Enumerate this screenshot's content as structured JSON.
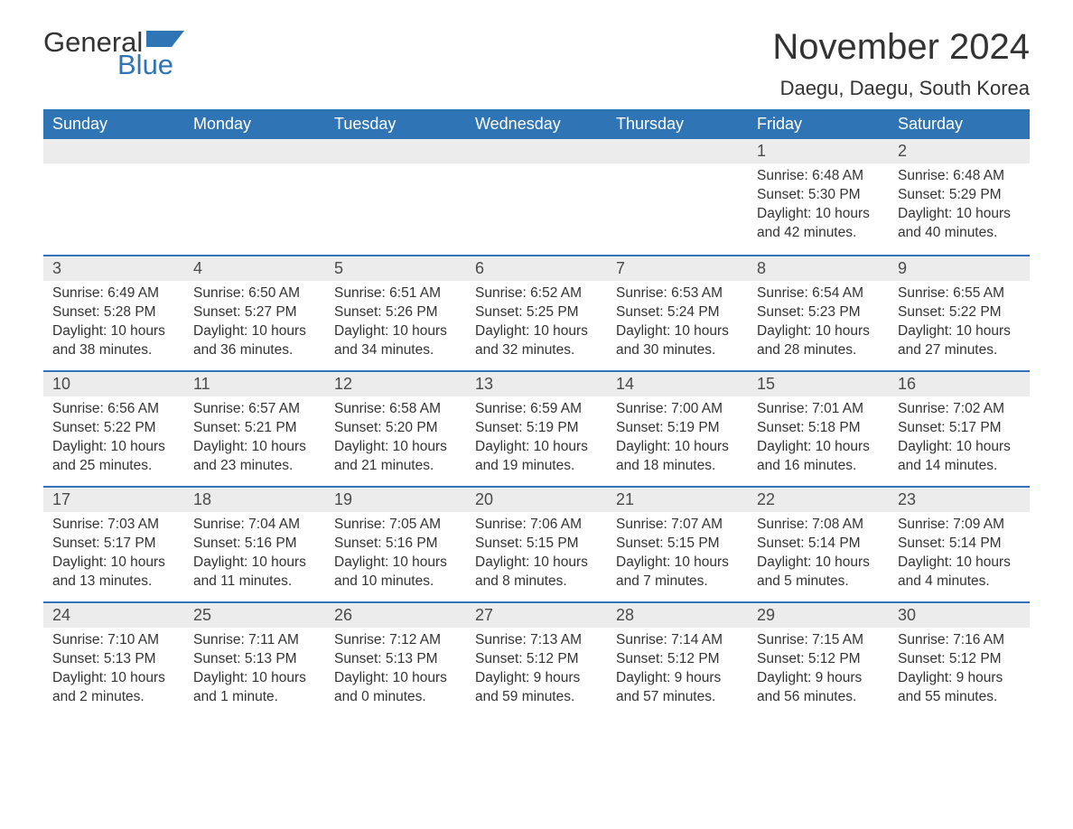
{
  "brand": {
    "part1": "General",
    "part2": "Blue",
    "text_color": "#333333",
    "accent_color": "#2f75b5"
  },
  "title": "November 2024",
  "location": "Daegu, Daegu, South Korea",
  "colors": {
    "header_bg": "#2f75b5",
    "header_text": "#ffffff",
    "daynum_bg": "#ececec",
    "border_top": "#2f75b5",
    "body_text": "#333333",
    "page_bg": "#ffffff"
  },
  "fonts": {
    "title_size_pt": 30,
    "location_size_pt": 17,
    "header_size_pt": 14,
    "daynum_size_pt": 14,
    "body_size_pt": 12
  },
  "day_headers": [
    "Sunday",
    "Monday",
    "Tuesday",
    "Wednesday",
    "Thursday",
    "Friday",
    "Saturday"
  ],
  "weeks": [
    [
      null,
      null,
      null,
      null,
      null,
      {
        "n": "1",
        "sunrise": "Sunrise: 6:48 AM",
        "sunset": "Sunset: 5:30 PM",
        "daylight": "Daylight: 10 hours and 42 minutes."
      },
      {
        "n": "2",
        "sunrise": "Sunrise: 6:48 AM",
        "sunset": "Sunset: 5:29 PM",
        "daylight": "Daylight: 10 hours and 40 minutes."
      }
    ],
    [
      {
        "n": "3",
        "sunrise": "Sunrise: 6:49 AM",
        "sunset": "Sunset: 5:28 PM",
        "daylight": "Daylight: 10 hours and 38 minutes."
      },
      {
        "n": "4",
        "sunrise": "Sunrise: 6:50 AM",
        "sunset": "Sunset: 5:27 PM",
        "daylight": "Daylight: 10 hours and 36 minutes."
      },
      {
        "n": "5",
        "sunrise": "Sunrise: 6:51 AM",
        "sunset": "Sunset: 5:26 PM",
        "daylight": "Daylight: 10 hours and 34 minutes."
      },
      {
        "n": "6",
        "sunrise": "Sunrise: 6:52 AM",
        "sunset": "Sunset: 5:25 PM",
        "daylight": "Daylight: 10 hours and 32 minutes."
      },
      {
        "n": "7",
        "sunrise": "Sunrise: 6:53 AM",
        "sunset": "Sunset: 5:24 PM",
        "daylight": "Daylight: 10 hours and 30 minutes."
      },
      {
        "n": "8",
        "sunrise": "Sunrise: 6:54 AM",
        "sunset": "Sunset: 5:23 PM",
        "daylight": "Daylight: 10 hours and 28 minutes."
      },
      {
        "n": "9",
        "sunrise": "Sunrise: 6:55 AM",
        "sunset": "Sunset: 5:22 PM",
        "daylight": "Daylight: 10 hours and 27 minutes."
      }
    ],
    [
      {
        "n": "10",
        "sunrise": "Sunrise: 6:56 AM",
        "sunset": "Sunset: 5:22 PM",
        "daylight": "Daylight: 10 hours and 25 minutes."
      },
      {
        "n": "11",
        "sunrise": "Sunrise: 6:57 AM",
        "sunset": "Sunset: 5:21 PM",
        "daylight": "Daylight: 10 hours and 23 minutes."
      },
      {
        "n": "12",
        "sunrise": "Sunrise: 6:58 AM",
        "sunset": "Sunset: 5:20 PM",
        "daylight": "Daylight: 10 hours and 21 minutes."
      },
      {
        "n": "13",
        "sunrise": "Sunrise: 6:59 AM",
        "sunset": "Sunset: 5:19 PM",
        "daylight": "Daylight: 10 hours and 19 minutes."
      },
      {
        "n": "14",
        "sunrise": "Sunrise: 7:00 AM",
        "sunset": "Sunset: 5:19 PM",
        "daylight": "Daylight: 10 hours and 18 minutes."
      },
      {
        "n": "15",
        "sunrise": "Sunrise: 7:01 AM",
        "sunset": "Sunset: 5:18 PM",
        "daylight": "Daylight: 10 hours and 16 minutes."
      },
      {
        "n": "16",
        "sunrise": "Sunrise: 7:02 AM",
        "sunset": "Sunset: 5:17 PM",
        "daylight": "Daylight: 10 hours and 14 minutes."
      }
    ],
    [
      {
        "n": "17",
        "sunrise": "Sunrise: 7:03 AM",
        "sunset": "Sunset: 5:17 PM",
        "daylight": "Daylight: 10 hours and 13 minutes."
      },
      {
        "n": "18",
        "sunrise": "Sunrise: 7:04 AM",
        "sunset": "Sunset: 5:16 PM",
        "daylight": "Daylight: 10 hours and 11 minutes."
      },
      {
        "n": "19",
        "sunrise": "Sunrise: 7:05 AM",
        "sunset": "Sunset: 5:16 PM",
        "daylight": "Daylight: 10 hours and 10 minutes."
      },
      {
        "n": "20",
        "sunrise": "Sunrise: 7:06 AM",
        "sunset": "Sunset: 5:15 PM",
        "daylight": "Daylight: 10 hours and 8 minutes."
      },
      {
        "n": "21",
        "sunrise": "Sunrise: 7:07 AM",
        "sunset": "Sunset: 5:15 PM",
        "daylight": "Daylight: 10 hours and 7 minutes."
      },
      {
        "n": "22",
        "sunrise": "Sunrise: 7:08 AM",
        "sunset": "Sunset: 5:14 PM",
        "daylight": "Daylight: 10 hours and 5 minutes."
      },
      {
        "n": "23",
        "sunrise": "Sunrise: 7:09 AM",
        "sunset": "Sunset: 5:14 PM",
        "daylight": "Daylight: 10 hours and 4 minutes."
      }
    ],
    [
      {
        "n": "24",
        "sunrise": "Sunrise: 7:10 AM",
        "sunset": "Sunset: 5:13 PM",
        "daylight": "Daylight: 10 hours and 2 minutes."
      },
      {
        "n": "25",
        "sunrise": "Sunrise: 7:11 AM",
        "sunset": "Sunset: 5:13 PM",
        "daylight": "Daylight: 10 hours and 1 minute."
      },
      {
        "n": "26",
        "sunrise": "Sunrise: 7:12 AM",
        "sunset": "Sunset: 5:13 PM",
        "daylight": "Daylight: 10 hours and 0 minutes."
      },
      {
        "n": "27",
        "sunrise": "Sunrise: 7:13 AM",
        "sunset": "Sunset: 5:12 PM",
        "daylight": "Daylight: 9 hours and 59 minutes."
      },
      {
        "n": "28",
        "sunrise": "Sunrise: 7:14 AM",
        "sunset": "Sunset: 5:12 PM",
        "daylight": "Daylight: 9 hours and 57 minutes."
      },
      {
        "n": "29",
        "sunrise": "Sunrise: 7:15 AM",
        "sunset": "Sunset: 5:12 PM",
        "daylight": "Daylight: 9 hours and 56 minutes."
      },
      {
        "n": "30",
        "sunrise": "Sunrise: 7:16 AM",
        "sunset": "Sunset: 5:12 PM",
        "daylight": "Daylight: 9 hours and 55 minutes."
      }
    ]
  ]
}
